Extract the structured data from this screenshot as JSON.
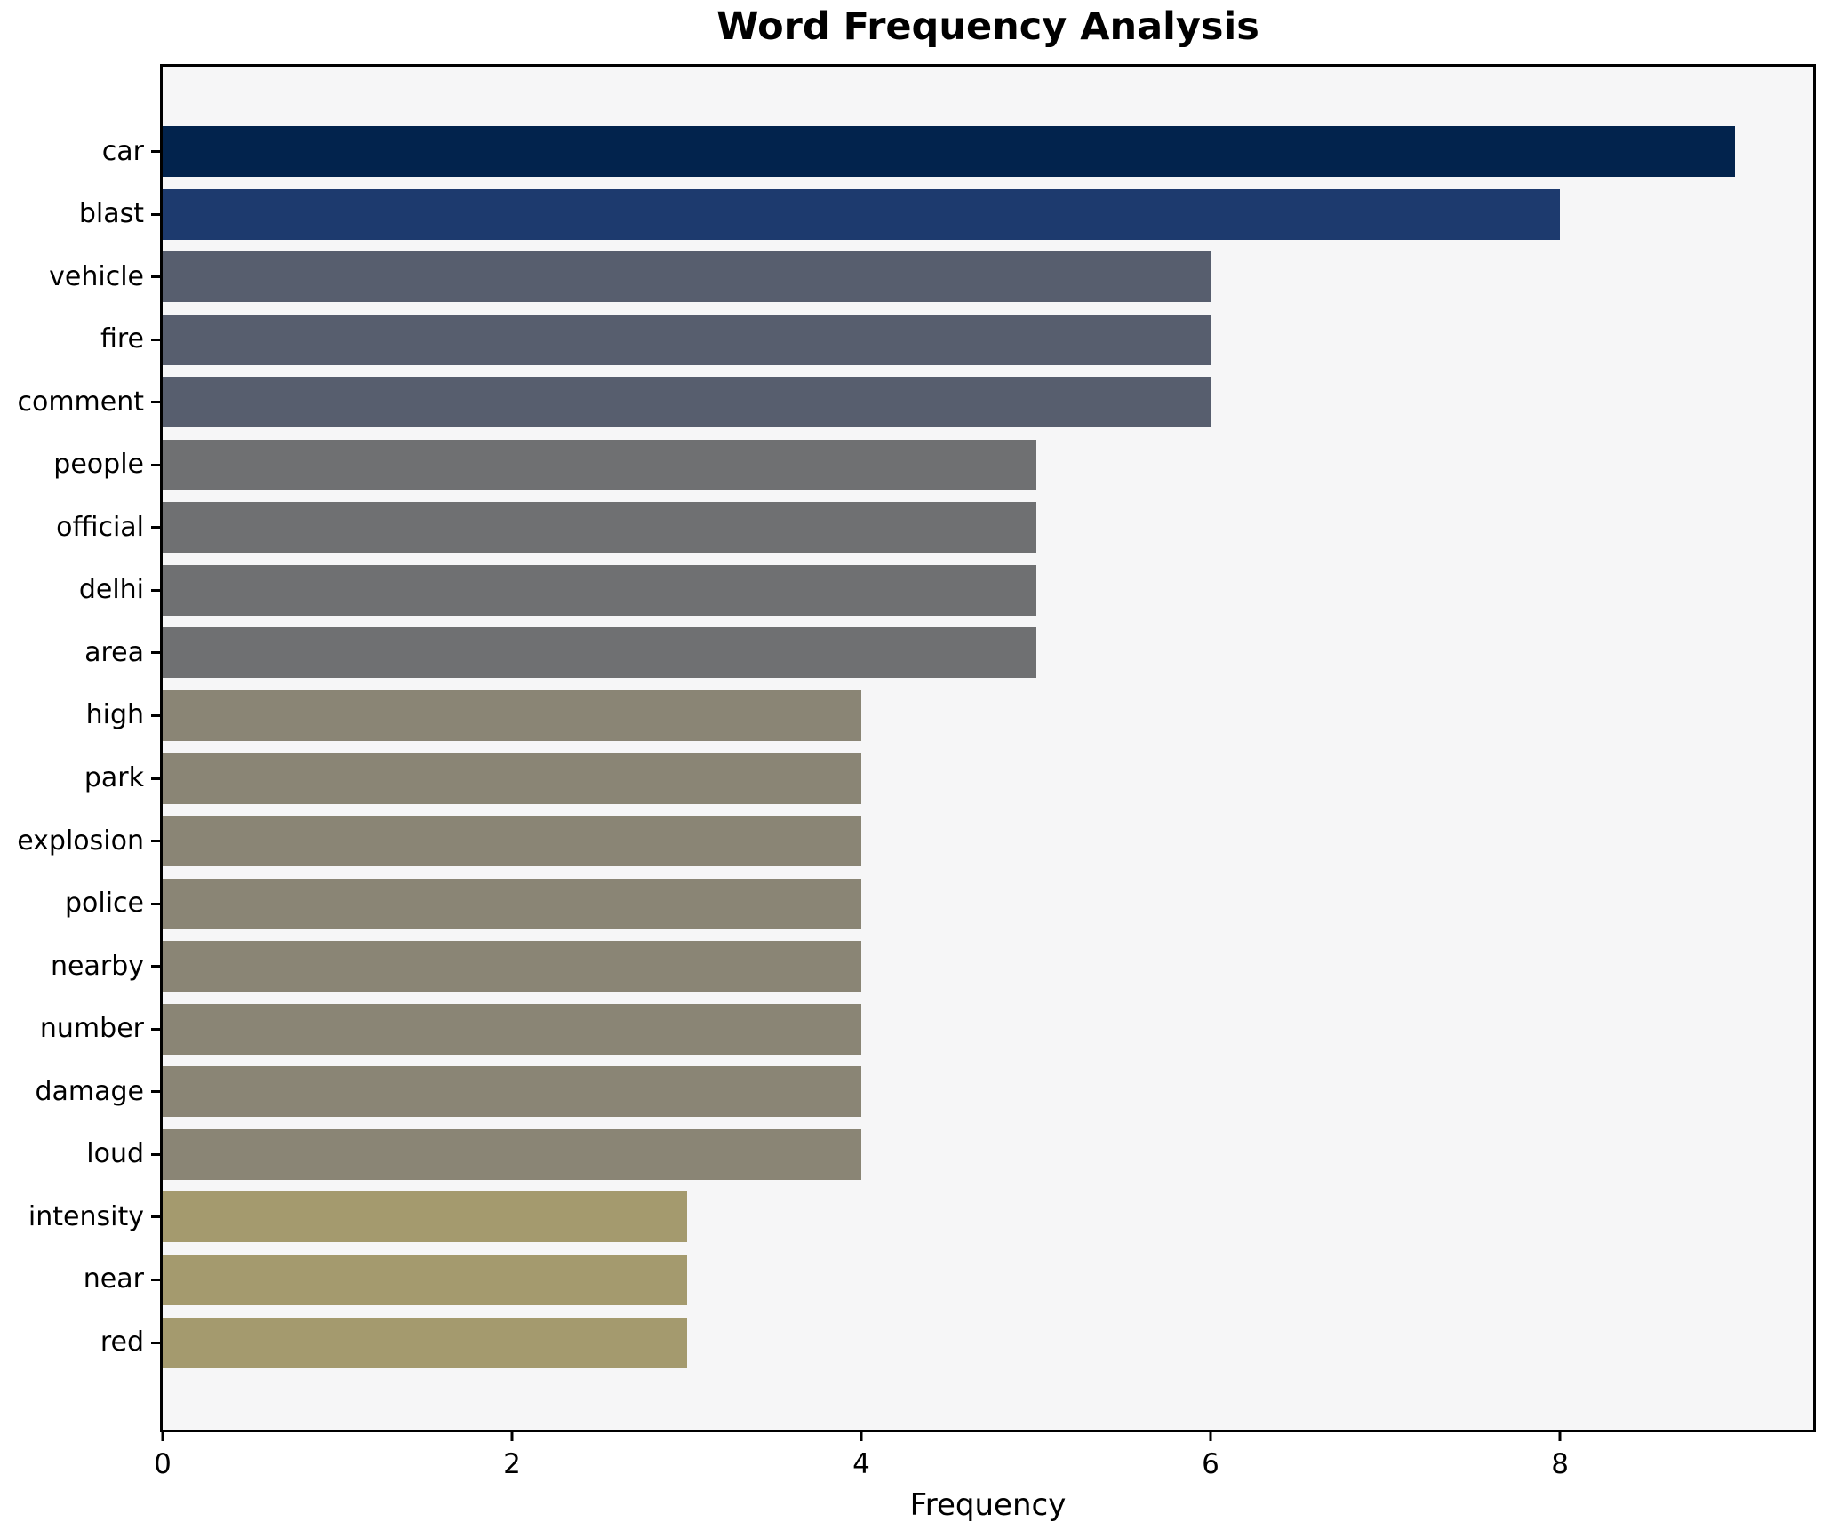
{
  "chart_data": {
    "type": "bar",
    "orientation": "horizontal",
    "title": "Word Frequency Analysis",
    "xlabel": "Frequency",
    "ylabel": "",
    "categories": [
      "car",
      "blast",
      "vehicle",
      "fire",
      "comment",
      "people",
      "official",
      "delhi",
      "area",
      "high",
      "park",
      "explosion",
      "police",
      "nearby",
      "number",
      "damage",
      "loud",
      "intensity",
      "near",
      "red"
    ],
    "values": [
      9,
      8,
      6,
      6,
      6,
      5,
      5,
      5,
      5,
      4,
      4,
      4,
      4,
      4,
      4,
      4,
      4,
      3,
      3,
      3
    ],
    "bar_colors": [
      "#02234d",
      "#1d3a6e",
      "#575e6e",
      "#575e6e",
      "#575e6e",
      "#6f7072",
      "#6f7072",
      "#6f7072",
      "#6f7072",
      "#8a8575",
      "#8a8575",
      "#8a8575",
      "#8a8575",
      "#8a8575",
      "#8a8575",
      "#8a8575",
      "#8a8575",
      "#a49a6e",
      "#a49a6e",
      "#a49a6e"
    ],
    "xlim": [
      0,
      9.45
    ],
    "x_ticks": [
      0,
      2,
      4,
      6,
      8
    ],
    "grid": false,
    "legend": false,
    "plot_background": "#f6f6f7",
    "figure_background": "#ffffff",
    "spine_color": "#000000"
  }
}
